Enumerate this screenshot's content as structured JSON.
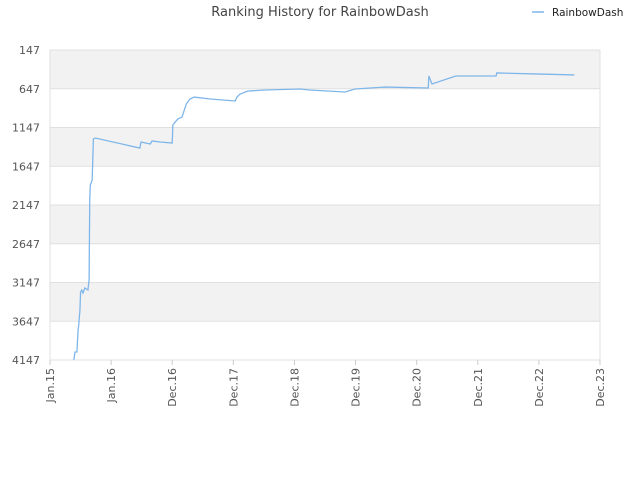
{
  "chart_data": {
    "type": "line",
    "title": "Ranking History for RainbowDash",
    "x": [
      0.39,
      0.41,
      0.44,
      0.46,
      0.47,
      0.49,
      0.5,
      0.52,
      0.54,
      0.57,
      0.62,
      0.64,
      0.65,
      0.66,
      0.69,
      0.7,
      0.71,
      0.74,
      1.47,
      1.49,
      1.64,
      1.67,
      1.8,
      2.0,
      2.01,
      2.09,
      2.16,
      2.23,
      2.29,
      2.36,
      2.62,
      3.03,
      3.06,
      3.11,
      3.24,
      3.52,
      4.09,
      4.25,
      4.83,
      4.99,
      5.48,
      6.19,
      6.2,
      6.25,
      6.64,
      7.3,
      7.31,
      7.94,
      8.58
    ],
    "series": [
      {
        "name": "RainbowDash",
        "color": "#7fb6ea",
        "values": [
          4147,
          4044,
          4044,
          3760,
          3695,
          3502,
          3270,
          3244,
          3283,
          3218,
          3244,
          3115,
          2083,
          1889,
          1825,
          1567,
          1295,
          1283,
          1412,
          1334,
          1360,
          1321,
          1334,
          1347,
          1115,
          1038,
          1012,
          844,
          779,
          754,
          779,
          805,
          754,
          715,
          676,
          663,
          650,
          663,
          689,
          650,
          625,
          637,
          482,
          585,
          482,
          482,
          443,
          456,
          469
        ]
      }
    ],
    "xlim": [
      0,
      9
    ],
    "xticks": [
      {
        "value": 0,
        "label": "Jan.15"
      },
      {
        "value": 1,
        "label": "Jan.16"
      },
      {
        "value": 2,
        "label": "Dec.16"
      },
      {
        "value": 3,
        "label": "Dec.17"
      },
      {
        "value": 4,
        "label": "Dec.18"
      },
      {
        "value": 5,
        "label": "Dec.19"
      },
      {
        "value": 6,
        "label": "Dec.20"
      },
      {
        "value": 7,
        "label": "Dec.21"
      },
      {
        "value": 8,
        "label": "Dec.22"
      },
      {
        "value": 9,
        "label": "Dec.23"
      }
    ],
    "ylim": [
      4147,
      147
    ],
    "yticks": [
      147,
      647,
      1147,
      1647,
      2147,
      2647,
      3147,
      3647,
      4147
    ],
    "grid": "bands",
    "legend": "top-right"
  }
}
